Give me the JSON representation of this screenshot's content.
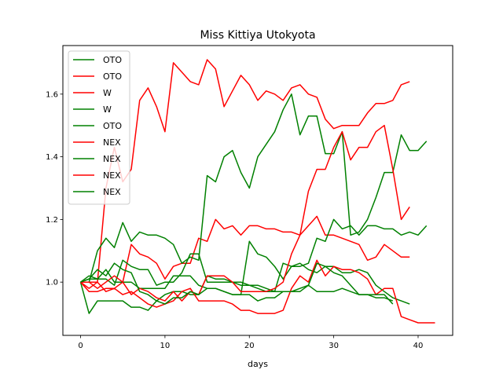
{
  "chart_data": {
    "type": "line",
    "title": "Miss Kittiya Utokyota",
    "xlabel": "days",
    "ylabel": "",
    "xlim": [
      -2.1,
      44.1
    ],
    "ylim": [
      0.83,
      1.755
    ],
    "xticks": [
      0,
      10,
      20,
      30,
      40
    ],
    "yticks": [
      1.0,
      1.2,
      1.4,
      1.6
    ],
    "ytick_labels": [
      "1.0",
      "1.2",
      "1.4",
      "1.6"
    ],
    "grid": false,
    "legend_position": "top-left",
    "series": [
      {
        "name": "OTO",
        "color": "#008000",
        "values": [
          1.0,
          0.9,
          0.94,
          0.94,
          0.94,
          0.94,
          0.92,
          0.92,
          0.91,
          0.94,
          0.96,
          0.97,
          0.97,
          0.96,
          0.96,
          1.02,
          1.01,
          1.01,
          1.0,
          1.0,
          0.99,
          0.99,
          0.98,
          0.97,
          0.97,
          0.97,
          0.98,
          0.99,
          0.97,
          0.97,
          0.97,
          0.98,
          0.97,
          0.96,
          0.96,
          0.95,
          0.95,
          0.94
        ]
      },
      {
        "name": "OTO",
        "color": "#ff0000",
        "values": [
          1.0,
          0.98,
          1.0,
          1.3,
          1.43,
          1.32,
          1.36,
          1.58,
          1.62,
          1.56,
          1.48,
          1.7,
          1.67,
          1.64,
          1.63,
          1.71,
          1.68,
          1.56,
          1.61,
          1.66,
          1.63,
          1.58,
          1.61,
          1.6,
          1.58,
          1.62,
          1.63,
          1.6,
          1.59,
          1.52,
          1.49,
          1.5,
          1.5,
          1.5,
          1.54,
          1.57,
          1.57,
          1.58,
          1.63,
          1.64
        ]
      },
      {
        "name": "W",
        "color": "#ff0000",
        "values": [
          1.0,
          0.97,
          0.97,
          0.98,
          0.98,
          1.0,
          1.12,
          1.09,
          1.08,
          1.06,
          1.01,
          1.05,
          1.06,
          1.06,
          1.14,
          1.13,
          1.2,
          1.17,
          1.18,
          1.15,
          1.18,
          1.18,
          1.17,
          1.17,
          1.16,
          1.16,
          1.15,
          1.18,
          1.21,
          1.15,
          1.15,
          1.14,
          1.13,
          1.12,
          1.07,
          1.08,
          1.12,
          1.1,
          1.08,
          1.08
        ]
      },
      {
        "name": "W",
        "color": "#008000",
        "values": [
          1.0,
          1.02,
          1.01,
          1.01,
          0.99,
          1.07,
          1.05,
          1.04,
          1.04,
          0.99,
          1.0,
          1.0,
          1.03,
          1.09,
          1.09,
          1.0,
          1.0,
          1.0,
          1.0,
          0.99,
          0.99,
          0.98,
          0.97,
          0.97,
          1.06,
          1.05,
          1.06,
          1.04,
          1.03,
          1.05,
          1.05,
          1.03,
          1.03,
          1.04,
          1.03,
          0.99,
          0.97,
          0.95,
          0.94,
          0.93
        ]
      },
      {
        "name": "OTO",
        "color": "#008000",
        "values": [
          1.0,
          1.0,
          1.1,
          1.14,
          1.11,
          1.19,
          1.13,
          1.16,
          1.15,
          1.15,
          1.14,
          1.12,
          1.06,
          1.08,
          1.07,
          1.34,
          1.32,
          1.4,
          1.42,
          1.35,
          1.3,
          1.4,
          1.44,
          1.48,
          1.55,
          1.6,
          1.47,
          1.53,
          1.53,
          1.41,
          1.41,
          1.48,
          1.15,
          1.16,
          1.2,
          1.27,
          1.35,
          1.35,
          1.47,
          1.42,
          1.42,
          1.45
        ]
      },
      {
        "name": "NEX",
        "color": "#ff0000",
        "values": [
          1.0,
          1.0,
          1.0,
          0.97,
          0.98,
          0.96,
          0.97,
          0.95,
          0.93,
          0.92,
          0.93,
          0.94,
          0.97,
          0.98,
          0.94,
          0.94,
          0.94,
          0.94,
          0.93,
          0.91,
          0.91,
          0.9,
          0.9,
          0.9,
          0.91,
          0.98,
          1.02,
          1.0,
          1.07,
          1.02,
          1.05,
          1.04,
          1.04,
          1.03,
          1.01,
          0.96,
          0.98,
          0.98,
          0.89,
          0.88,
          0.87,
          0.87,
          0.87
        ]
      },
      {
        "name": "NEX",
        "color": "#008000",
        "values": [
          1.0,
          1.01,
          1.01,
          1.04,
          1.0,
          1.0,
          1.0,
          0.98,
          0.98,
          0.98,
          0.98,
          1.02,
          1.02,
          1.02,
          0.99,
          0.98,
          0.98,
          0.97,
          0.96,
          0.96,
          1.13,
          1.09,
          1.08,
          1.05,
          1.01,
          1.05,
          1.05,
          1.06,
          1.14,
          1.13,
          1.2,
          1.17,
          1.18,
          1.15,
          1.18,
          1.18,
          1.17,
          1.17,
          1.15,
          1.16,
          1.15,
          1.18
        ]
      },
      {
        "name": "NEX",
        "color": "#ff0000",
        "values": [
          1.0,
          1.0,
          0.98,
          1.0,
          1.02,
          1.0,
          0.96,
          0.98,
          0.97,
          0.95,
          0.94,
          0.97,
          0.94,
          0.97,
          0.96,
          1.02,
          1.02,
          1.02,
          1.0,
          0.97,
          0.97,
          0.97,
          0.97,
          0.98,
          1.0,
          1.09,
          1.15,
          1.29,
          1.36,
          1.36,
          1.43,
          1.48,
          1.39,
          1.43,
          1.43,
          1.48,
          1.5,
          1.36,
          1.2,
          1.24
        ]
      },
      {
        "name": "NEX",
        "color": "#008000",
        "values": [
          1.0,
          1.01,
          1.04,
          1.02,
          1.06,
          1.04,
          1.03,
          0.97,
          0.96,
          0.94,
          0.93,
          0.95,
          0.95,
          0.97,
          0.96,
          0.98,
          0.98,
          0.97,
          0.96,
          0.96,
          0.96,
          0.94,
          0.95,
          0.95,
          0.97,
          0.97,
          0.97,
          0.99,
          1.06,
          1.05,
          1.03,
          1.02,
          0.99,
          0.96,
          0.96,
          0.96,
          0.96,
          0.93
        ]
      }
    ]
  }
}
